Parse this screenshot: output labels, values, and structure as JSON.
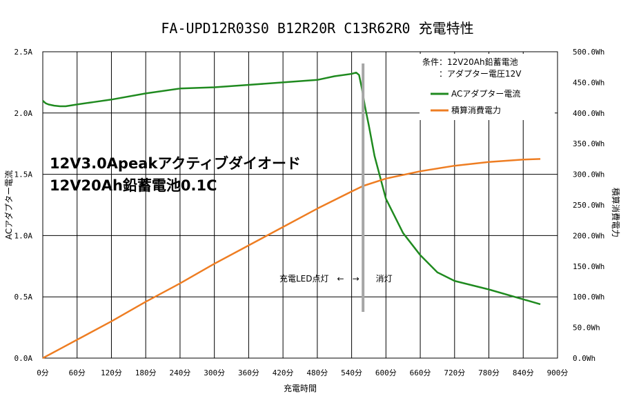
{
  "chart_data": {
    "type": "line",
    "title": "FA-UPD12R03S0 B12R20R C13R62R0 充電特性",
    "xlabel": "充電時間",
    "ylabel_left": "ACアダプター電流",
    "ylabel_right": "積算消費電力",
    "xlim": [
      0,
      900
    ],
    "ylim_left": [
      0,
      2.5
    ],
    "ylim_right": [
      0,
      500
    ],
    "x_ticks": [
      "0分",
      "60分",
      "120分",
      "180分",
      "240分",
      "300分",
      "360分",
      "420分",
      "480分",
      "540分",
      "600分",
      "660分",
      "720分",
      "780分",
      "840分",
      "900分"
    ],
    "y_left_ticks": [
      "0.0A",
      "0.5A",
      "1.0A",
      "1.5A",
      "2.0A",
      "2.5A"
    ],
    "y_right_ticks": [
      "0.0Wh",
      "50.0Wh",
      "100.0Wh",
      "150.0Wh",
      "200.0Wh",
      "250.0Wh",
      "300.0Wh",
      "350.0Wh",
      "400.0Wh",
      "450.0Wh",
      "500.0Wh"
    ],
    "grid": true,
    "legend_position": "top-right",
    "legend_conditions": [
      "条件：12V20Ah鉛蓄電池",
      "：アダプター電圧12V"
    ],
    "series": [
      {
        "name": "ACアダプター電流",
        "axis": "left",
        "color": "#1f8a1f",
        "x": [
          0,
          5,
          10,
          20,
          30,
          40,
          60,
          90,
          120,
          180,
          240,
          300,
          360,
          420,
          480,
          510,
          540,
          548,
          553,
          558,
          563,
          570,
          580,
          600,
          630,
          660,
          690,
          720,
          780,
          840,
          870
        ],
        "y": [
          2.1,
          2.08,
          2.07,
          2.06,
          2.055,
          2.055,
          2.07,
          2.09,
          2.11,
          2.16,
          2.2,
          2.21,
          2.23,
          2.25,
          2.27,
          2.3,
          2.32,
          2.33,
          2.31,
          2.2,
          2.06,
          1.9,
          1.65,
          1.3,
          1.02,
          0.84,
          0.7,
          0.63,
          0.56,
          0.48,
          0.44
        ]
      },
      {
        "name": "積算消費電力",
        "axis": "right",
        "color": "#ee7d22",
        "x": [
          0,
          30,
          60,
          120,
          180,
          240,
          300,
          360,
          420,
          480,
          540,
          560,
          600,
          660,
          720,
          780,
          840,
          870
        ],
        "y": [
          0,
          15,
          30,
          60,
          92,
          122,
          154,
          184,
          214,
          244,
          272,
          281,
          293,
          305,
          314,
          320,
          324,
          325
        ]
      }
    ],
    "annotations": {
      "overlay_line1": "12V3.0Apeakアクティブダイオード",
      "overlay_line2": "12V20Ah鉛蓄電池0.1C",
      "led_text": "充電LED点灯　←　→　　消灯",
      "led_divider_x": 560,
      "led_divider_color": "#a6a6a6"
    }
  }
}
